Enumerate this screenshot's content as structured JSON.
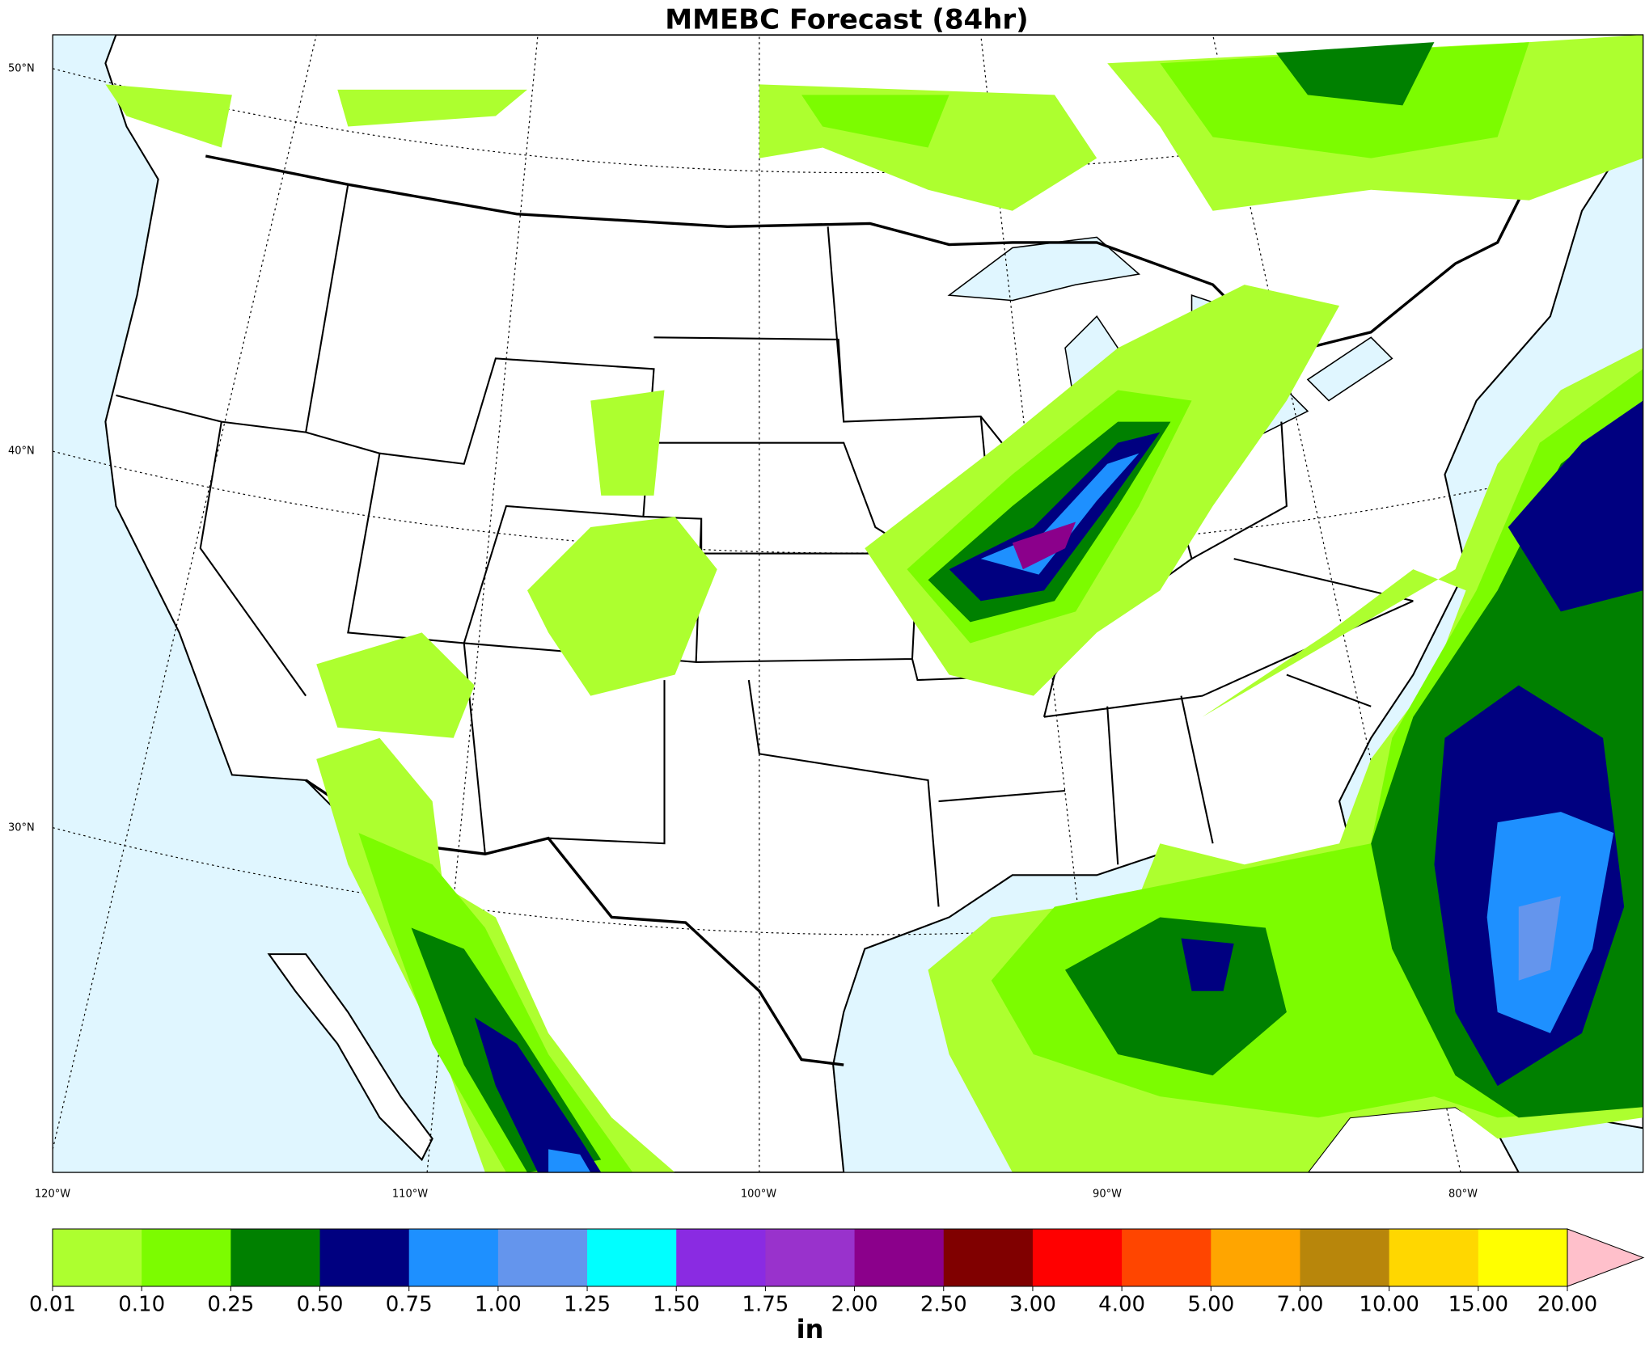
{
  "title": "MMEBC Forecast (84hr)",
  "latitude_labels": [
    "50°N",
    "40°N",
    "30°N"
  ],
  "longitude_labels": [
    "120°W",
    "110°W",
    "100°W",
    "90°W",
    "80°W"
  ],
  "colorbar": {
    "ticks": [
      "0.01",
      "0.10",
      "0.25",
      "0.50",
      "0.75",
      "1.00",
      "1.25",
      "1.50",
      "1.75",
      "2.00",
      "2.50",
      "3.00",
      "4.00",
      "5.00",
      "7.00",
      "10.00",
      "15.00",
      "20.00"
    ],
    "colors": [
      "#adff2f",
      "#7cfc00",
      "#008000",
      "#000080",
      "#1e90ff",
      "#6495ed",
      "#00ffff",
      "#8a2be2",
      "#9932cc",
      "#8b008b",
      "#800000",
      "#ff0000",
      "#ff4500",
      "#ffa500",
      "#b8860b",
      "#ffd700",
      "#ffff00"
    ],
    "extend_color": "#ffc0cb",
    "unit": "in"
  }
}
